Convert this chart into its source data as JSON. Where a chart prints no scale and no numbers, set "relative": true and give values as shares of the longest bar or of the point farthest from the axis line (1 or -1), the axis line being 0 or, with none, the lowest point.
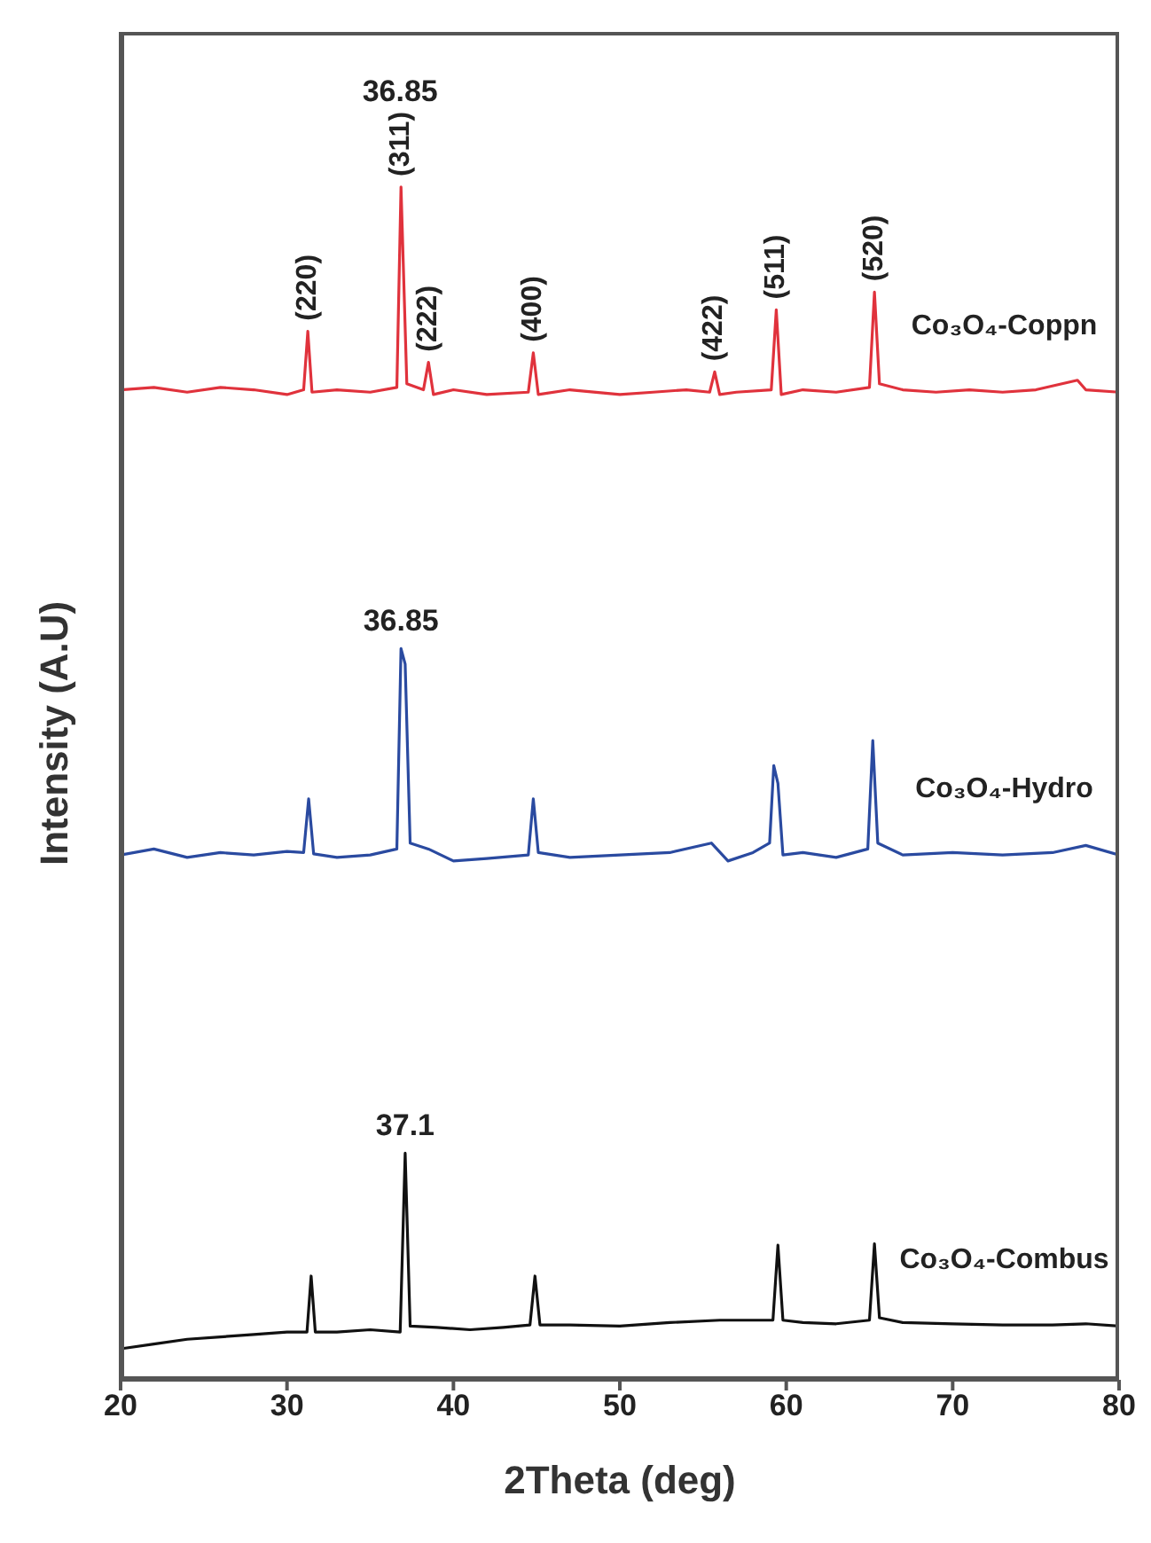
{
  "chart_data": {
    "type": "line",
    "relative": true,
    "xlabel": "2Theta (deg)",
    "ylabel": "Intensity (A.U)",
    "xlim": [
      20,
      80
    ],
    "xticks": [
      20,
      30,
      40,
      50,
      60,
      70,
      80
    ],
    "series": [
      {
        "name": "Co₃O₄-Coppn",
        "color": "#e0323c",
        "x": [
          20,
          22,
          24,
          26,
          28,
          30,
          31.0,
          31.25,
          31.5,
          33,
          35,
          36.6,
          36.85,
          37.2,
          38.2,
          38.5,
          38.8,
          40,
          42,
          44.5,
          44.8,
          45.1,
          47,
          50,
          52,
          54,
          55.4,
          55.7,
          56.0,
          57,
          59.1,
          59.4,
          59.7,
          61,
          63,
          65.0,
          65.3,
          65.6,
          67,
          69,
          71,
          73,
          75,
          77.5,
          78,
          80
        ],
        "values": [
          0.83,
          0.832,
          0.828,
          0.832,
          0.83,
          0.826,
          0.83,
          0.879,
          0.828,
          0.83,
          0.828,
          0.832,
          1,
          0.835,
          0.83,
          0.853,
          0.826,
          0.83,
          0.826,
          0.828,
          0.861,
          0.826,
          0.83,
          0.826,
          0.828,
          0.83,
          0.828,
          0.845,
          0.826,
          0.828,
          0.83,
          0.897,
          0.826,
          0.83,
          0.828,
          0.832,
          0.912,
          0.835,
          0.83,
          0.828,
          0.83,
          0.828,
          0.83,
          0.838,
          0.83,
          0.828
        ]
      },
      {
        "name": "Co₃O₄-Hydro",
        "color": "#2a4aa0",
        "x": [
          20,
          22,
          24,
          26,
          28,
          30,
          31.0,
          31.3,
          31.6,
          33,
          35,
          36.6,
          36.85,
          37.1,
          37.4,
          38.5,
          40,
          42,
          44.5,
          44.8,
          45.1,
          47,
          50,
          53,
          55.5,
          56.5,
          58,
          59.0,
          59.25,
          59.5,
          59.8,
          61,
          63,
          64.9,
          65.2,
          65.5,
          67,
          70,
          73,
          76,
          78,
          80
        ],
        "values": [
          0.44,
          0.445,
          0.438,
          0.442,
          0.44,
          0.443,
          0.442,
          0.487,
          0.441,
          0.438,
          0.44,
          0.445,
          0.613,
          0.6,
          0.45,
          0.445,
          0.435,
          0.437,
          0.44,
          0.487,
          0.442,
          0.438,
          0.44,
          0.442,
          0.45,
          0.435,
          0.442,
          0.45,
          0.515,
          0.5,
          0.44,
          0.442,
          0.438,
          0.445,
          0.536,
          0.45,
          0.44,
          0.442,
          0.44,
          0.442,
          0.448,
          0.44
        ]
      },
      {
        "name": "Co₃O₄-Combus",
        "color": "#111111",
        "x": [
          20,
          22,
          24,
          26,
          28,
          30,
          31.2,
          31.45,
          31.7,
          33,
          35,
          36.8,
          37.1,
          37.4,
          39,
          41,
          43,
          44.6,
          44.9,
          45.2,
          47,
          50,
          53,
          56,
          58,
          59.2,
          59.5,
          59.8,
          61,
          63,
          65.0,
          65.3,
          65.6,
          67,
          70,
          73,
          76,
          78,
          80
        ],
        "values": [
          0.026,
          0.03,
          0.034,
          0.036,
          0.038,
          0.04,
          0.04,
          0.087,
          0.04,
          0.04,
          0.042,
          0.04,
          0.19,
          0.045,
          0.044,
          0.042,
          0.044,
          0.046,
          0.087,
          0.046,
          0.046,
          0.045,
          0.048,
          0.05,
          0.05,
          0.05,
          0.113,
          0.05,
          0.048,
          0.047,
          0.05,
          0.114,
          0.052,
          0.048,
          0.047,
          0.046,
          0.046,
          0.047,
          0.045
        ]
      }
    ],
    "annotations": [
      {
        "text": "(220)",
        "x": 31.25,
        "y": 0.879
      },
      {
        "text": "(311)",
        "x": 36.85,
        "y": 1
      },
      {
        "text": "(222)",
        "x": 38.5,
        "y": 0.853
      },
      {
        "text": "(400)",
        "x": 44.8,
        "y": 0.861
      },
      {
        "text": "(422)",
        "x": 55.7,
        "y": 0.845
      },
      {
        "text": "(511)",
        "x": 59.4,
        "y": 0.897
      },
      {
        "text": "(520)",
        "x": 65.3,
        "y": 0.912
      },
      "36.85",
      {
        "text": "36.85",
        "x": 36.85,
        "y": 0.613
      },
      {
        "text": "37.1",
        "x": 37.1,
        "y": 0.19
      }
    ]
  }
}
